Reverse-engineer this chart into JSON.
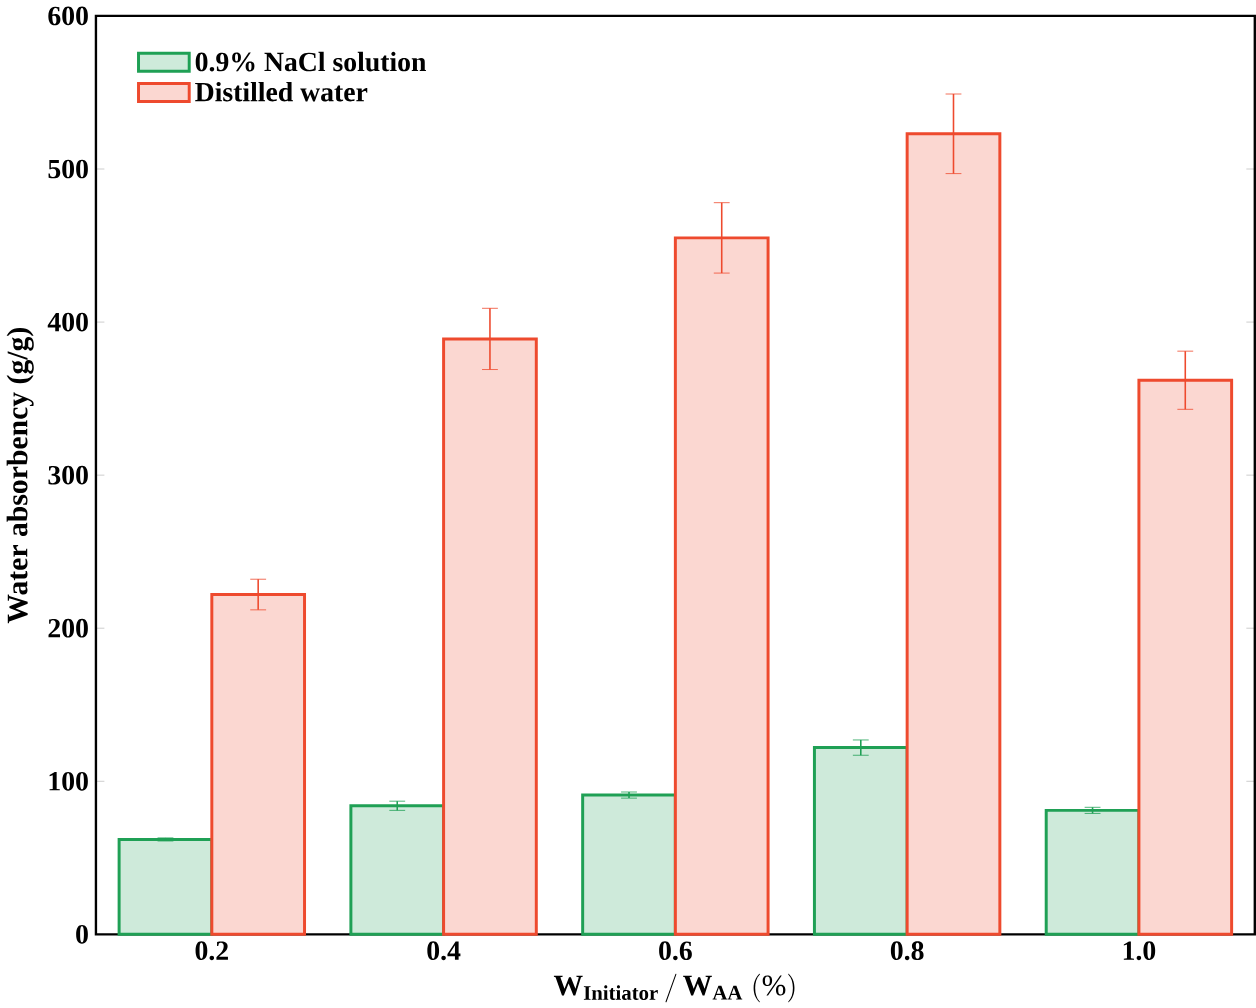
{
  "chart_data": {
    "type": "bar",
    "xlabel": "\\mathbf{W}_{\\mathbf{Initiator}}\\,\\mathbf{/}\\,\\mathbf{W}_{\\mathbf{AA}}\\ \\mathbf{(\\%)}",
    "ylabel": "Water absorbency (g/g)",
    "categories": [
      "0.2",
      "0.4",
      "0.6",
      "0.8",
      "1.0"
    ],
    "series": [
      {
        "name": "0.9% NaCl solution",
        "color": "#1fa055",
        "values": [
          62,
          84,
          91,
          122,
          81
        ],
        "errors": [
          1,
          3,
          2,
          5,
          2
        ]
      },
      {
        "name": "Distilled water",
        "color": "#ee4a2e",
        "values": [
          222,
          389,
          455,
          523,
          362
        ],
        "errors": [
          10,
          20,
          23,
          26,
          19
        ]
      }
    ],
    "ylim": [
      0,
      600
    ],
    "yticks": [
      0,
      100,
      200,
      300,
      400,
      500,
      600
    ],
    "legend": "top left",
    "grid": false
  }
}
